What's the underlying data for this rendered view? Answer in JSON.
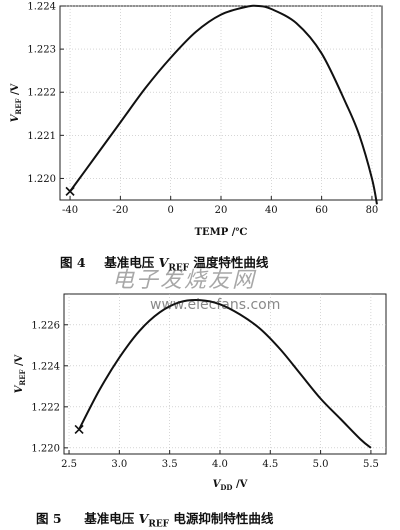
{
  "chart_data": [
    {
      "type": "line",
      "xlabel": "TEMP /℃",
      "ylabel": "V_REF /V",
      "xlim": [
        -44,
        84
      ],
      "ylim": [
        1.2195,
        1.224
      ],
      "xticks": [
        -40,
        -20,
        0,
        20,
        40,
        60,
        80
      ],
      "yticks": [
        1.22,
        1.221,
        1.222,
        1.223,
        1.224
      ],
      "series": [
        {
          "x": [
            -40,
            -30,
            -20,
            -10,
            0,
            10,
            20,
            30,
            35,
            40,
            50,
            60,
            70,
            75,
            80,
            82
          ],
          "y": [
            1.2197,
            1.2205,
            1.2213,
            1.2221,
            1.2228,
            1.2234,
            1.2238,
            1.22398,
            1.224,
            1.22393,
            1.2236,
            1.2229,
            1.2217,
            1.221,
            1.22,
            1.2194
          ]
        }
      ],
      "marker": {
        "x": -40,
        "y": 1.2197
      },
      "caption": {
        "num": "图 4",
        "pre": "基准电压 ",
        "v": "V",
        "sub": "REF",
        "post": " 温度特性曲线"
      }
    },
    {
      "type": "line",
      "xlabel": "V_DD /V",
      "ylabel": "V_REF /V",
      "xlim": [
        2.45,
        5.65
      ],
      "ylim": [
        1.2197,
        1.2275
      ],
      "xticks": [
        2.5,
        3.0,
        3.5,
        4.0,
        4.5,
        5.0,
        5.5
      ],
      "yticks": [
        1.22,
        1.222,
        1.224,
        1.226
      ],
      "series": [
        {
          "x": [
            2.6,
            2.8,
            3.0,
            3.2,
            3.4,
            3.6,
            3.8,
            4.0,
            4.2,
            4.4,
            4.6,
            4.8,
            5.0,
            5.2,
            5.4,
            5.5
          ],
          "y": [
            1.2209,
            1.2228,
            1.2244,
            1.2257,
            1.2266,
            1.2271,
            1.2272,
            1.227,
            1.2265,
            1.2258,
            1.2248,
            1.2236,
            1.2224,
            1.2214,
            1.2204,
            1.22
          ]
        }
      ],
      "marker": {
        "x": 2.6,
        "y": 1.2209
      },
      "caption": {
        "num": "图 5",
        "pre": "基准电压 ",
        "v": "V",
        "sub": "REF",
        "post": " 电源抑制特性曲线"
      }
    }
  ],
  "watermark": {
    "cn": "电子发烧友网",
    "url": "www.elecfans.com"
  }
}
